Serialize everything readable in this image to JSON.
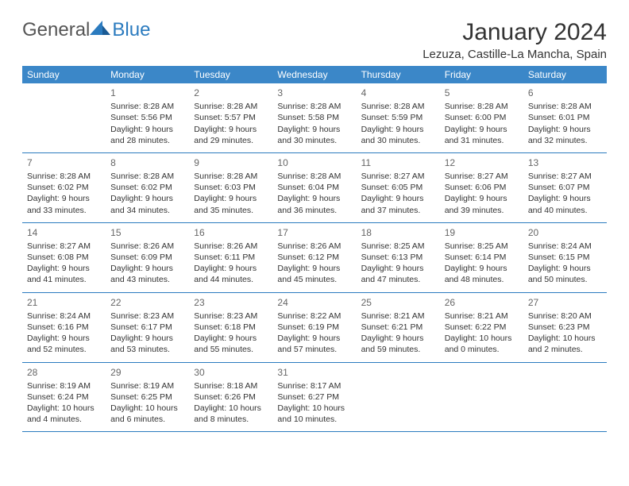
{
  "logo": {
    "general": "General",
    "blue": "Blue"
  },
  "title": "January 2024",
  "location": "Lezuza, Castille-La Mancha, Spain",
  "colors": {
    "header_bg": "#3b87c8",
    "header_text": "#ffffff",
    "divider": "#2b7bbf",
    "text": "#333333",
    "daynum": "#666666"
  },
  "days_of_week": [
    "Sunday",
    "Monday",
    "Tuesday",
    "Wednesday",
    "Thursday",
    "Friday",
    "Saturday"
  ],
  "weeks": [
    [
      {
        "num": "",
        "sunrise": "",
        "sunset": "",
        "daylight1": "",
        "daylight2": ""
      },
      {
        "num": "1",
        "sunrise": "Sunrise: 8:28 AM",
        "sunset": "Sunset: 5:56 PM",
        "daylight1": "Daylight: 9 hours",
        "daylight2": "and 28 minutes."
      },
      {
        "num": "2",
        "sunrise": "Sunrise: 8:28 AM",
        "sunset": "Sunset: 5:57 PM",
        "daylight1": "Daylight: 9 hours",
        "daylight2": "and 29 minutes."
      },
      {
        "num": "3",
        "sunrise": "Sunrise: 8:28 AM",
        "sunset": "Sunset: 5:58 PM",
        "daylight1": "Daylight: 9 hours",
        "daylight2": "and 30 minutes."
      },
      {
        "num": "4",
        "sunrise": "Sunrise: 8:28 AM",
        "sunset": "Sunset: 5:59 PM",
        "daylight1": "Daylight: 9 hours",
        "daylight2": "and 30 minutes."
      },
      {
        "num": "5",
        "sunrise": "Sunrise: 8:28 AM",
        "sunset": "Sunset: 6:00 PM",
        "daylight1": "Daylight: 9 hours",
        "daylight2": "and 31 minutes."
      },
      {
        "num": "6",
        "sunrise": "Sunrise: 8:28 AM",
        "sunset": "Sunset: 6:01 PM",
        "daylight1": "Daylight: 9 hours",
        "daylight2": "and 32 minutes."
      }
    ],
    [
      {
        "num": "7",
        "sunrise": "Sunrise: 8:28 AM",
        "sunset": "Sunset: 6:02 PM",
        "daylight1": "Daylight: 9 hours",
        "daylight2": "and 33 minutes."
      },
      {
        "num": "8",
        "sunrise": "Sunrise: 8:28 AM",
        "sunset": "Sunset: 6:02 PM",
        "daylight1": "Daylight: 9 hours",
        "daylight2": "and 34 minutes."
      },
      {
        "num": "9",
        "sunrise": "Sunrise: 8:28 AM",
        "sunset": "Sunset: 6:03 PM",
        "daylight1": "Daylight: 9 hours",
        "daylight2": "and 35 minutes."
      },
      {
        "num": "10",
        "sunrise": "Sunrise: 8:28 AM",
        "sunset": "Sunset: 6:04 PM",
        "daylight1": "Daylight: 9 hours",
        "daylight2": "and 36 minutes."
      },
      {
        "num": "11",
        "sunrise": "Sunrise: 8:27 AM",
        "sunset": "Sunset: 6:05 PM",
        "daylight1": "Daylight: 9 hours",
        "daylight2": "and 37 minutes."
      },
      {
        "num": "12",
        "sunrise": "Sunrise: 8:27 AM",
        "sunset": "Sunset: 6:06 PM",
        "daylight1": "Daylight: 9 hours",
        "daylight2": "and 39 minutes."
      },
      {
        "num": "13",
        "sunrise": "Sunrise: 8:27 AM",
        "sunset": "Sunset: 6:07 PM",
        "daylight1": "Daylight: 9 hours",
        "daylight2": "and 40 minutes."
      }
    ],
    [
      {
        "num": "14",
        "sunrise": "Sunrise: 8:27 AM",
        "sunset": "Sunset: 6:08 PM",
        "daylight1": "Daylight: 9 hours",
        "daylight2": "and 41 minutes."
      },
      {
        "num": "15",
        "sunrise": "Sunrise: 8:26 AM",
        "sunset": "Sunset: 6:09 PM",
        "daylight1": "Daylight: 9 hours",
        "daylight2": "and 43 minutes."
      },
      {
        "num": "16",
        "sunrise": "Sunrise: 8:26 AM",
        "sunset": "Sunset: 6:11 PM",
        "daylight1": "Daylight: 9 hours",
        "daylight2": "and 44 minutes."
      },
      {
        "num": "17",
        "sunrise": "Sunrise: 8:26 AM",
        "sunset": "Sunset: 6:12 PM",
        "daylight1": "Daylight: 9 hours",
        "daylight2": "and 45 minutes."
      },
      {
        "num": "18",
        "sunrise": "Sunrise: 8:25 AM",
        "sunset": "Sunset: 6:13 PM",
        "daylight1": "Daylight: 9 hours",
        "daylight2": "and 47 minutes."
      },
      {
        "num": "19",
        "sunrise": "Sunrise: 8:25 AM",
        "sunset": "Sunset: 6:14 PM",
        "daylight1": "Daylight: 9 hours",
        "daylight2": "and 48 minutes."
      },
      {
        "num": "20",
        "sunrise": "Sunrise: 8:24 AM",
        "sunset": "Sunset: 6:15 PM",
        "daylight1": "Daylight: 9 hours",
        "daylight2": "and 50 minutes."
      }
    ],
    [
      {
        "num": "21",
        "sunrise": "Sunrise: 8:24 AM",
        "sunset": "Sunset: 6:16 PM",
        "daylight1": "Daylight: 9 hours",
        "daylight2": "and 52 minutes."
      },
      {
        "num": "22",
        "sunrise": "Sunrise: 8:23 AM",
        "sunset": "Sunset: 6:17 PM",
        "daylight1": "Daylight: 9 hours",
        "daylight2": "and 53 minutes."
      },
      {
        "num": "23",
        "sunrise": "Sunrise: 8:23 AM",
        "sunset": "Sunset: 6:18 PM",
        "daylight1": "Daylight: 9 hours",
        "daylight2": "and 55 minutes."
      },
      {
        "num": "24",
        "sunrise": "Sunrise: 8:22 AM",
        "sunset": "Sunset: 6:19 PM",
        "daylight1": "Daylight: 9 hours",
        "daylight2": "and 57 minutes."
      },
      {
        "num": "25",
        "sunrise": "Sunrise: 8:21 AM",
        "sunset": "Sunset: 6:21 PM",
        "daylight1": "Daylight: 9 hours",
        "daylight2": "and 59 minutes."
      },
      {
        "num": "26",
        "sunrise": "Sunrise: 8:21 AM",
        "sunset": "Sunset: 6:22 PM",
        "daylight1": "Daylight: 10 hours",
        "daylight2": "and 0 minutes."
      },
      {
        "num": "27",
        "sunrise": "Sunrise: 8:20 AM",
        "sunset": "Sunset: 6:23 PM",
        "daylight1": "Daylight: 10 hours",
        "daylight2": "and 2 minutes."
      }
    ],
    [
      {
        "num": "28",
        "sunrise": "Sunrise: 8:19 AM",
        "sunset": "Sunset: 6:24 PM",
        "daylight1": "Daylight: 10 hours",
        "daylight2": "and 4 minutes."
      },
      {
        "num": "29",
        "sunrise": "Sunrise: 8:19 AM",
        "sunset": "Sunset: 6:25 PM",
        "daylight1": "Daylight: 10 hours",
        "daylight2": "and 6 minutes."
      },
      {
        "num": "30",
        "sunrise": "Sunrise: 8:18 AM",
        "sunset": "Sunset: 6:26 PM",
        "daylight1": "Daylight: 10 hours",
        "daylight2": "and 8 minutes."
      },
      {
        "num": "31",
        "sunrise": "Sunrise: 8:17 AM",
        "sunset": "Sunset: 6:27 PM",
        "daylight1": "Daylight: 10 hours",
        "daylight2": "and 10 minutes."
      },
      {
        "num": "",
        "sunrise": "",
        "sunset": "",
        "daylight1": "",
        "daylight2": ""
      },
      {
        "num": "",
        "sunrise": "",
        "sunset": "",
        "daylight1": "",
        "daylight2": ""
      },
      {
        "num": "",
        "sunrise": "",
        "sunset": "",
        "daylight1": "",
        "daylight2": ""
      }
    ]
  ]
}
